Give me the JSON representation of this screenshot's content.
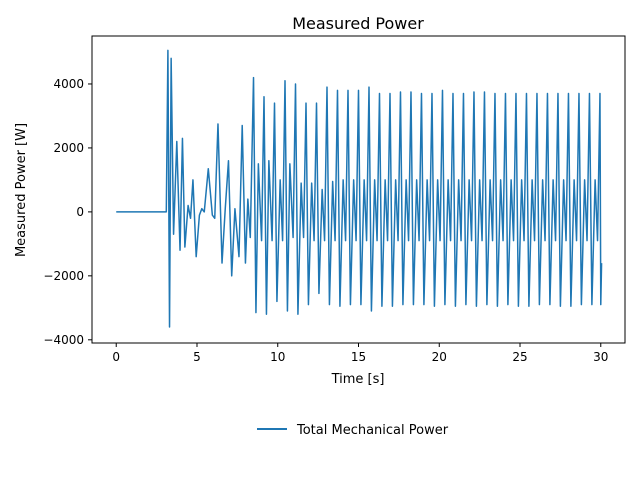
{
  "chart_data": {
    "type": "line",
    "title": "Measured Power",
    "xlabel": "Time [s]",
    "ylabel": "Measured Power [W]",
    "xlim": [
      -1.5,
      31.5
    ],
    "ylim": [
      -4100,
      5500
    ],
    "xticks": [
      0,
      5,
      10,
      15,
      20,
      25,
      30
    ],
    "xtick_labels": [
      "0",
      "5",
      "10",
      "15",
      "20",
      "25",
      "30"
    ],
    "yticks": [
      -4000,
      -2000,
      0,
      2000,
      4000
    ],
    "ytick_labels": [
      "−4000",
      "−2000",
      "0",
      "2000",
      "4000"
    ],
    "grid": false,
    "legend_position": "bottom-center",
    "series": [
      {
        "name": "Total Mechanical Power",
        "color": "#1f77b4",
        "points": [
          [
            0,
            0
          ],
          [
            3.1,
            0
          ],
          [
            3.2,
            5050
          ],
          [
            3.3,
            -3600
          ],
          [
            3.4,
            4800
          ],
          [
            3.55,
            -700
          ],
          [
            3.75,
            2200
          ],
          [
            3.95,
            -1200
          ],
          [
            4.1,
            2300
          ],
          [
            4.25,
            -1100
          ],
          [
            4.45,
            200
          ],
          [
            4.6,
            -200
          ],
          [
            4.75,
            1000
          ],
          [
            4.95,
            -1400
          ],
          [
            5.15,
            -100
          ],
          [
            5.3,
            100
          ],
          [
            5.45,
            0
          ],
          [
            5.7,
            1350
          ],
          [
            5.95,
            -100
          ],
          [
            6.1,
            -200
          ],
          [
            6.3,
            2750
          ],
          [
            6.55,
            -1600
          ],
          [
            6.75,
            100
          ],
          [
            6.95,
            1600
          ],
          [
            7.15,
            -2000
          ],
          [
            7.35,
            100
          ],
          [
            7.6,
            -1400
          ],
          [
            7.8,
            2700
          ],
          [
            8.0,
            -1600
          ],
          [
            8.15,
            400
          ],
          [
            8.3,
            -800
          ],
          [
            8.5,
            4200
          ],
          [
            8.65,
            -3150
          ],
          [
            8.8,
            1500
          ],
          [
            9.0,
            -900
          ],
          [
            9.15,
            3600
          ],
          [
            9.3,
            -3200
          ],
          [
            9.45,
            1600
          ],
          [
            9.65,
            -900
          ],
          [
            9.8,
            3400
          ],
          [
            9.95,
            -2800
          ],
          [
            10.15,
            1000
          ],
          [
            10.3,
            -900
          ],
          [
            10.45,
            4100
          ],
          [
            10.6,
            -3100
          ],
          [
            10.75,
            1500
          ],
          [
            10.95,
            -800
          ],
          [
            11.1,
            4000
          ],
          [
            11.25,
            -3200
          ],
          [
            11.45,
            900
          ],
          [
            11.6,
            -800
          ],
          [
            11.75,
            3400
          ],
          [
            11.9,
            -2900
          ],
          [
            12.1,
            900
          ],
          [
            12.25,
            -900
          ],
          [
            12.4,
            3400
          ],
          [
            12.55,
            -2550
          ],
          [
            12.75,
            700
          ],
          [
            12.9,
            -900
          ],
          [
            13.05,
            3900
          ],
          [
            13.2,
            -2900
          ],
          [
            13.4,
            950
          ],
          [
            13.55,
            -900
          ],
          [
            13.7,
            3800
          ],
          [
            13.85,
            -2950
          ],
          [
            14.05,
            1000
          ],
          [
            14.2,
            -900
          ],
          [
            14.35,
            3800
          ],
          [
            14.5,
            -2900
          ],
          [
            14.7,
            1000
          ],
          [
            14.85,
            -900
          ],
          [
            15.0,
            3800
          ],
          [
            15.15,
            -2900
          ],
          [
            15.35,
            1000
          ],
          [
            15.5,
            -900
          ],
          [
            15.65,
            3900
          ],
          [
            15.8,
            -3100
          ],
          [
            16.0,
            1000
          ],
          [
            16.15,
            -900
          ],
          [
            16.3,
            3700
          ],
          [
            16.45,
            -2950
          ],
          [
            16.65,
            1000
          ],
          [
            16.8,
            -900
          ],
          [
            16.95,
            3700
          ],
          [
            17.1,
            -2950
          ],
          [
            17.3,
            1000
          ],
          [
            17.45,
            -900
          ],
          [
            17.6,
            3750
          ],
          [
            17.75,
            -2900
          ],
          [
            17.95,
            1000
          ],
          [
            18.1,
            -900
          ],
          [
            18.25,
            3750
          ],
          [
            18.4,
            -2900
          ],
          [
            18.6,
            1000
          ],
          [
            18.75,
            -900
          ],
          [
            18.9,
            3700
          ],
          [
            19.05,
            -2900
          ],
          [
            19.25,
            1000
          ],
          [
            19.4,
            -900
          ],
          [
            19.55,
            3700
          ],
          [
            19.7,
            -2950
          ],
          [
            19.9,
            1000
          ],
          [
            20.05,
            -900
          ],
          [
            20.2,
            3800
          ],
          [
            20.35,
            -2900
          ],
          [
            20.55,
            1000
          ],
          [
            20.7,
            -900
          ],
          [
            20.85,
            3700
          ],
          [
            21.0,
            -2950
          ],
          [
            21.2,
            1000
          ],
          [
            21.35,
            -900
          ],
          [
            21.5,
            3700
          ],
          [
            21.65,
            -2900
          ],
          [
            21.85,
            1000
          ],
          [
            22.0,
            -900
          ],
          [
            22.15,
            3750
          ],
          [
            22.3,
            -2950
          ],
          [
            22.5,
            1000
          ],
          [
            22.65,
            -900
          ],
          [
            22.8,
            3750
          ],
          [
            22.95,
            -2900
          ],
          [
            23.15,
            1000
          ],
          [
            23.3,
            -900
          ],
          [
            23.45,
            3700
          ],
          [
            23.6,
            -2950
          ],
          [
            23.8,
            1000
          ],
          [
            23.95,
            -900
          ],
          [
            24.1,
            3700
          ],
          [
            24.25,
            -2900
          ],
          [
            24.45,
            1000
          ],
          [
            24.6,
            -900
          ],
          [
            24.75,
            3700
          ],
          [
            24.9,
            -2950
          ],
          [
            25.1,
            1000
          ],
          [
            25.25,
            -900
          ],
          [
            25.4,
            3700
          ],
          [
            25.55,
            -2950
          ],
          [
            25.75,
            1000
          ],
          [
            25.9,
            -900
          ],
          [
            26.05,
            3700
          ],
          [
            26.2,
            -2900
          ],
          [
            26.4,
            1000
          ],
          [
            26.55,
            -900
          ],
          [
            26.7,
            3700
          ],
          [
            26.85,
            -2900
          ],
          [
            27.05,
            1000
          ],
          [
            27.2,
            -900
          ],
          [
            27.35,
            3700
          ],
          [
            27.5,
            -2950
          ],
          [
            27.7,
            1000
          ],
          [
            27.85,
            -900
          ],
          [
            28.0,
            3700
          ],
          [
            28.15,
            -2950
          ],
          [
            28.35,
            1000
          ],
          [
            28.5,
            -900
          ],
          [
            28.65,
            3700
          ],
          [
            28.8,
            -2900
          ],
          [
            29.0,
            1000
          ],
          [
            29.15,
            -900
          ],
          [
            29.3,
            3700
          ],
          [
            29.45,
            -2900
          ],
          [
            29.65,
            1000
          ],
          [
            29.8,
            -900
          ],
          [
            29.95,
            3700
          ],
          [
            30.0,
            -2900
          ],
          [
            30.05,
            -1600
          ]
        ]
      }
    ]
  }
}
